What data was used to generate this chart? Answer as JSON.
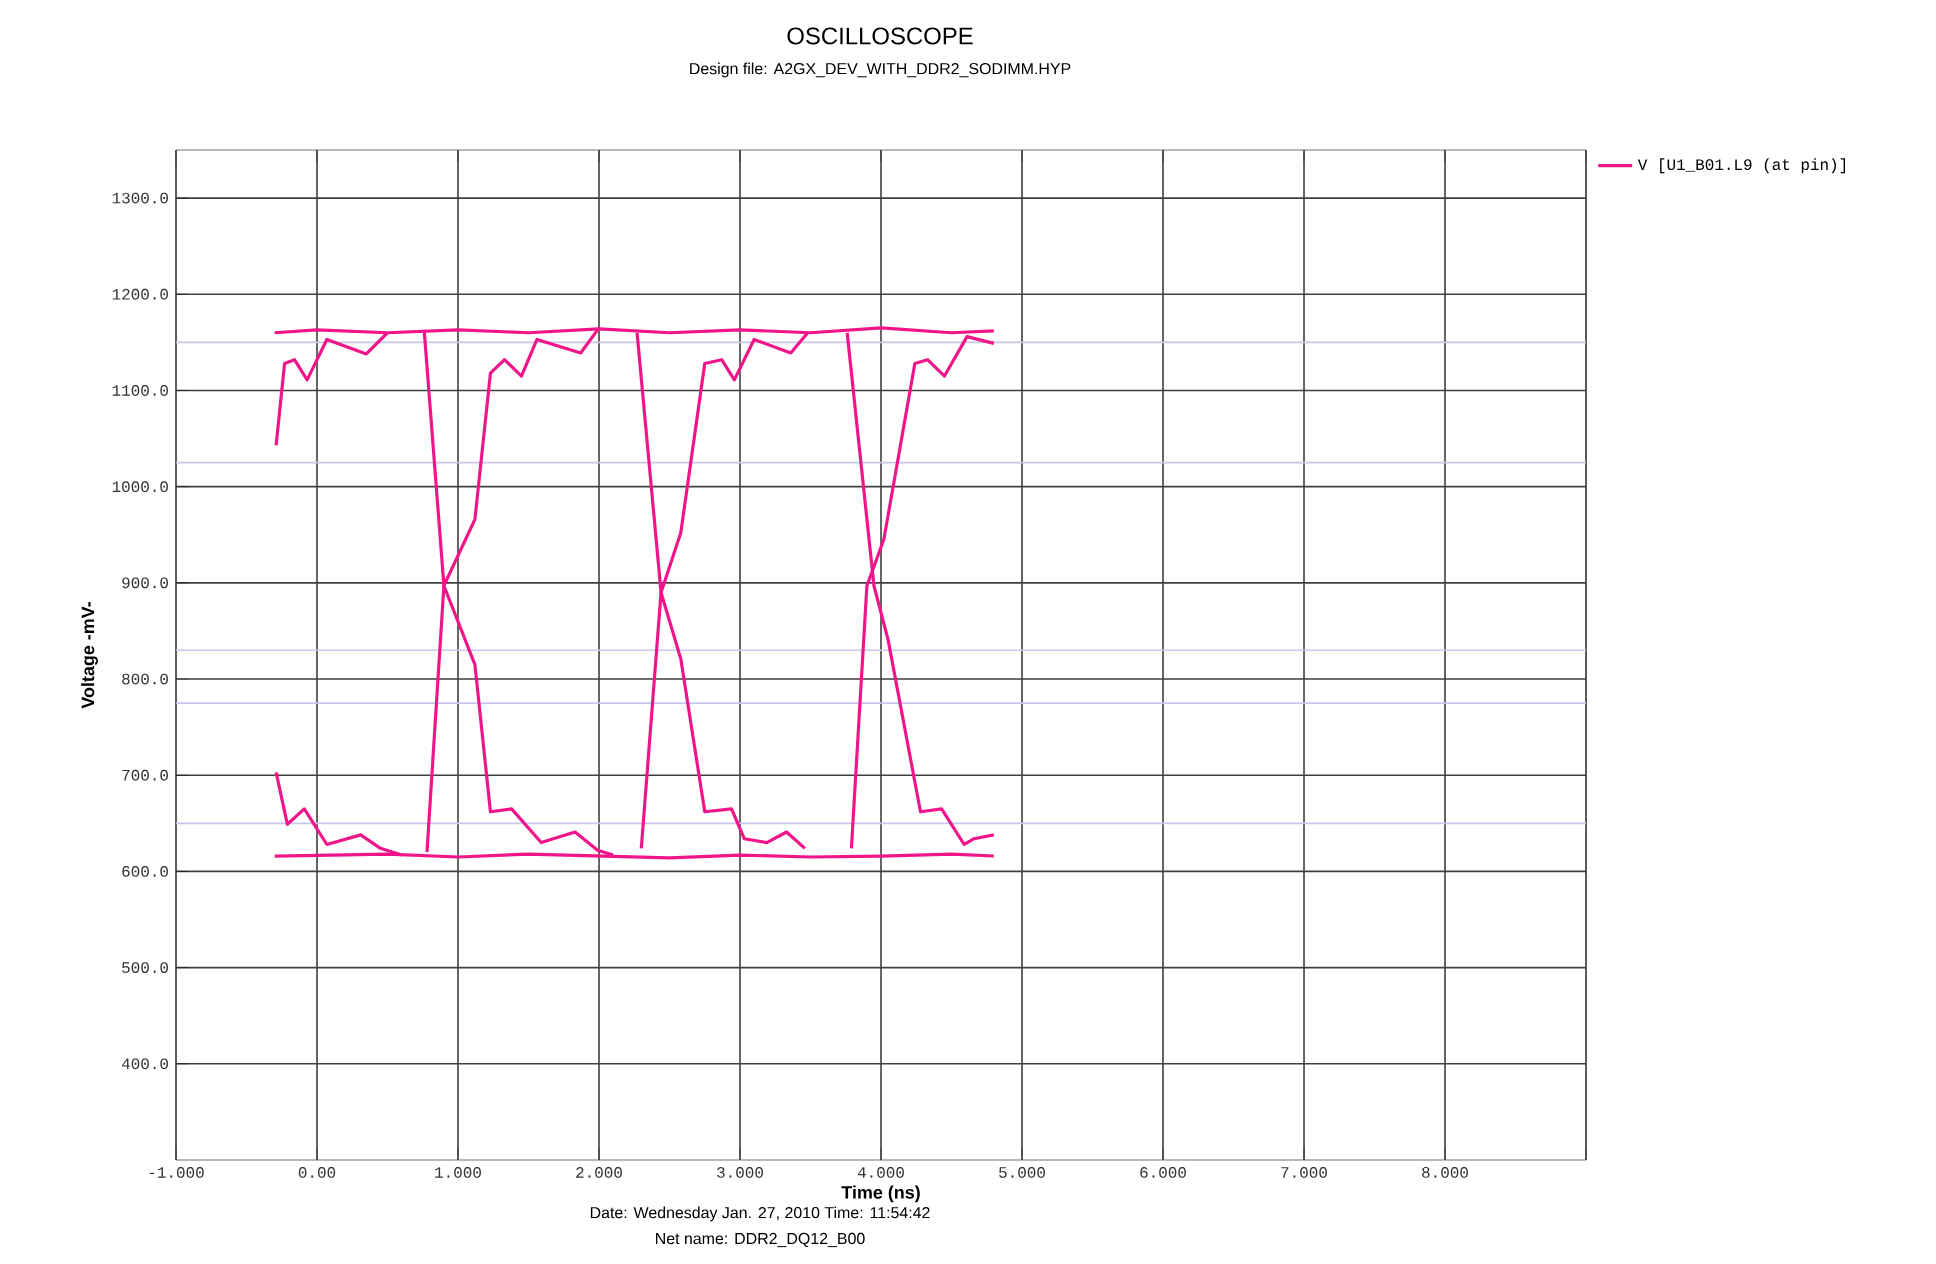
{
  "chart_data": {
    "type": "line",
    "title": "OSCILLOSCOPE",
    "subtitle": "Design file: A2GX_DEV_WITH_DDR2_SODIMM.HYP",
    "xlabel": "Time  (ns)",
    "ylabel": "Voltage -mV-",
    "xlim": [
      -1,
      9
    ],
    "ylim": [
      300,
      1350
    ],
    "xticks": [
      {
        "value": -1,
        "label": "-1.000"
      },
      {
        "value": 0,
        "label": "0.00"
      },
      {
        "value": 1,
        "label": "1.000"
      },
      {
        "value": 2,
        "label": "2.000"
      },
      {
        "value": 3,
        "label": "3.000"
      },
      {
        "value": 4,
        "label": "4.000"
      },
      {
        "value": 5,
        "label": "5.000"
      },
      {
        "value": 6,
        "label": "6.000"
      },
      {
        "value": 7,
        "label": "7.000"
      },
      {
        "value": 8,
        "label": "8.000"
      },
      {
        "value": 9,
        "label": null
      }
    ],
    "yticks": [
      {
        "value": 400,
        "label": "400.0"
      },
      {
        "value": 500,
        "label": "500.0"
      },
      {
        "value": 600,
        "label": "600.0"
      },
      {
        "value": 700,
        "label": "700.0"
      },
      {
        "value": 800,
        "label": "800.0"
      },
      {
        "value": 900,
        "label": "900.0"
      },
      {
        "value": 1000,
        "label": "1000.0"
      },
      {
        "value": 1100,
        "label": "1100.0"
      },
      {
        "value": 1200,
        "label": "1200.0"
      },
      {
        "value": 1300,
        "label": "1300.0"
      }
    ],
    "grid": true,
    "legend": "right",
    "line_style": "solid",
    "series": [
      {
        "name": "V [U1_B01.L9 (at pin)]",
        "color": "#f0168a",
        "x": [
          -0.3,
          0,
          0.5,
          1,
          1.5,
          2,
          2.5,
          3,
          3.5,
          4,
          4.5,
          4.8
        ],
        "values": [
          1160,
          1163,
          1160,
          1163,
          1160,
          1164,
          1160,
          1163,
          1160,
          1165,
          1160,
          1162
        ]
      },
      {
        "color": "#f0168a",
        "x": [
          -0.3,
          0.5,
          1,
          1.5,
          2,
          2.5,
          3,
          3.5,
          4,
          4.5,
          4.8
        ],
        "values": [
          616,
          618,
          615,
          618,
          616,
          614,
          617,
          615,
          616,
          618,
          616
        ]
      },
      {
        "color": "#f0168a",
        "x": [
          -0.29,
          -0.23,
          -0.16,
          -0.07,
          0.07,
          0.35,
          0.5
        ],
        "values": [
          1043,
          1128,
          1132,
          1111,
          1153,
          1138,
          1160
        ]
      },
      {
        "color": "#f0168a",
        "x": [
          -0.29,
          -0.21,
          -0.09,
          0.07,
          0.31,
          0.45,
          0.6
        ],
        "values": [
          703,
          649,
          665,
          628,
          638,
          624,
          617
        ]
      },
      {
        "color": "#f0168a",
        "x": [
          0.76,
          0.9,
          1.12,
          1.23,
          1.38,
          1.59,
          1.83,
          1.99,
          2.1
        ],
        "values": [
          1163,
          897,
          815,
          662,
          665,
          630,
          641,
          622,
          617
        ]
      },
      {
        "color": "#f0168a",
        "x": [
          0.78,
          0.9,
          1.12,
          1.23,
          1.33,
          1.45,
          1.56,
          1.87,
          1.99
        ],
        "values": [
          620,
          897,
          966,
          1118,
          1132,
          1115,
          1153,
          1139,
          1163
        ]
      },
      {
        "color": "#f0168a",
        "x": [
          2.27,
          2.44,
          2.58,
          2.75,
          2.94,
          3.03,
          3.19,
          3.33,
          3.46
        ],
        "values": [
          1160,
          890,
          821,
          662,
          665,
          634,
          630,
          641,
          624
        ]
      },
      {
        "color": "#f0168a",
        "x": [
          2.3,
          2.44,
          2.58,
          2.75,
          2.87,
          2.96,
          3.1,
          3.36,
          3.48
        ],
        "values": [
          624,
          890,
          952,
          1128,
          1132,
          1111,
          1153,
          1139,
          1160
        ]
      },
      {
        "color": "#f0168a",
        "x": [
          3.76,
          3.95,
          4.05,
          4.28,
          4.43,
          4.59,
          4.66,
          4.8
        ],
        "values": [
          1160,
          897,
          841,
          662,
          665,
          628,
          634,
          638
        ]
      },
      {
        "color": "#f0168a",
        "x": [
          3.79,
          3.9,
          4.02,
          4.24,
          4.33,
          4.45,
          4.61,
          4.8
        ],
        "values": [
          624,
          897,
          945,
          1128,
          1132,
          1115,
          1156,
          1149
        ]
      }
    ],
    "ref_lines": [
      {
        "axis": "y",
        "value": 1150,
        "color": "#c8c8e6"
      },
      {
        "axis": "y",
        "value": 1025,
        "color": "#c8c8e6"
      },
      {
        "axis": "y",
        "value": 830,
        "color": "#c8c8f0"
      },
      {
        "axis": "y",
        "value": 775,
        "color": "#c8c8f0"
      },
      {
        "axis": "y",
        "value": 650,
        "color": "#c8c8f0"
      }
    ],
    "annotations": [
      "Date: Wednesday Jan. 27, 2010   Time: 11:54:42",
      "Net name: DDR2_DQ12_B00"
    ]
  }
}
